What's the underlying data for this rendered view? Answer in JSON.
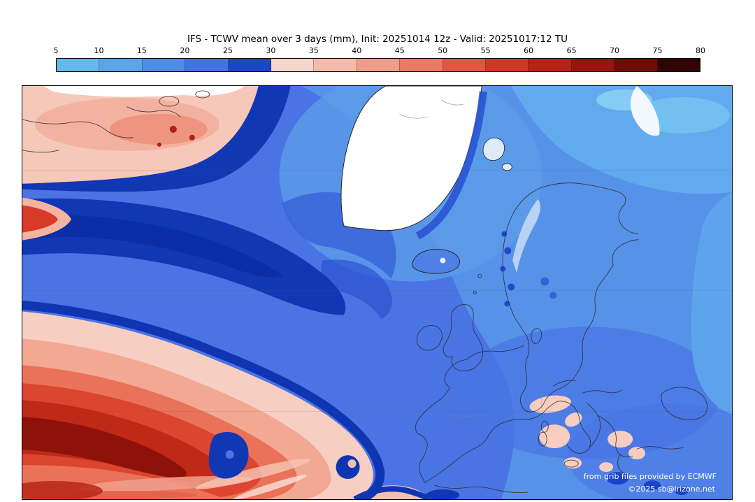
{
  "header": {
    "title": "IFS - TCWV mean over 3 days (mm), Init: 20251014 12z - Valid: 20251017:12 TU"
  },
  "colorbar": {
    "unit": "mm",
    "tick_labels": [
      "5",
      "10",
      "15",
      "20",
      "25",
      "30",
      "35",
      "40",
      "45",
      "50",
      "55",
      "60",
      "65",
      "70",
      "75",
      "80"
    ],
    "segment_colors": [
      "#64baee",
      "#58a6ea",
      "#4e8ee7",
      "#4272e3",
      "#1b46c8",
      "#f8d6cb",
      "#f4baaa",
      "#f09c88",
      "#ea7a64",
      "#e25641",
      "#d43625",
      "#ba2015",
      "#98140c",
      "#6e0d06",
      "#300503"
    ]
  },
  "map": {
    "attribution": "from grib files provided by ECMWF",
    "copyright": "©2025 sb@irizone.net",
    "palette": {
      "sea_blue_20_25": "#4a74e4",
      "sea_blue_15_20": "#5592e8",
      "band_blue_25_30": "#1138b4",
      "moist_pink_30_35": "#f7cfc2",
      "moist_red_core": "#8e120a",
      "dry_land_white": "#ffffff"
    }
  }
}
